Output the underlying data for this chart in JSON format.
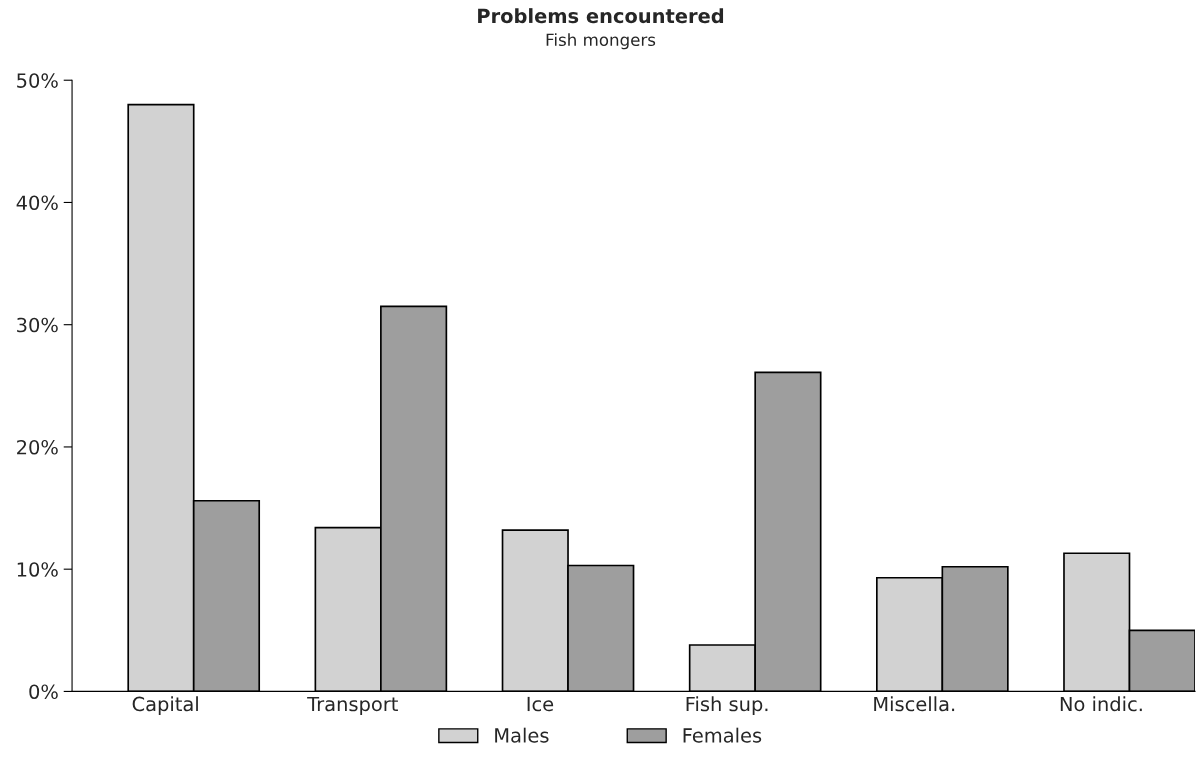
{
  "chart_data": {
    "type": "bar",
    "title": "Problems encountered",
    "subtitle": "Fish mongers",
    "categories": [
      "Capital",
      "Transport",
      "Ice",
      "Fish sup.",
      "Miscella.",
      "No indic."
    ],
    "series": [
      {
        "name": "Males",
        "color": "#d2d2d2",
        "values": [
          48.0,
          13.4,
          13.2,
          3.8,
          9.3,
          11.3
        ]
      },
      {
        "name": "Females",
        "color": "#9e9e9e",
        "values": [
          15.6,
          31.5,
          10.3,
          26.1,
          10.2,
          5.0
        ]
      }
    ],
    "ylim": [
      0,
      50
    ],
    "yticks": [
      {
        "value": 0,
        "label": "0%"
      },
      {
        "value": 10,
        "label": "10%"
      },
      {
        "value": 20,
        "label": "20%"
      },
      {
        "value": 30,
        "label": "30%"
      },
      {
        "value": 40,
        "label": "40%"
      },
      {
        "value": 50,
        "label": "50%"
      }
    ],
    "grid": false,
    "legend": "bottom"
  }
}
